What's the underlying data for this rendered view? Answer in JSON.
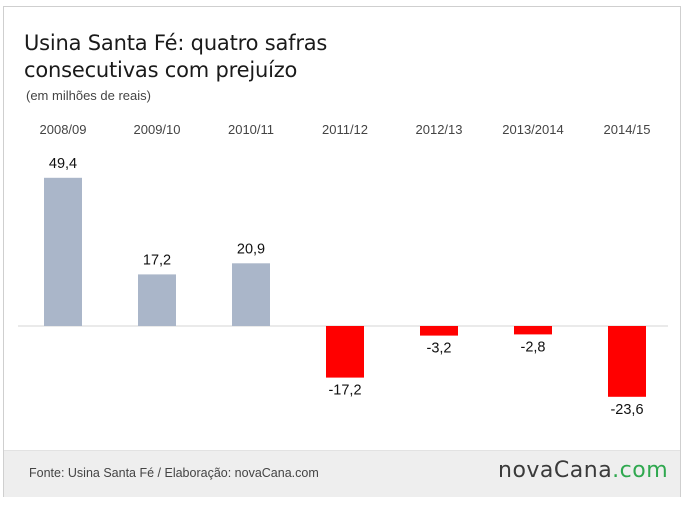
{
  "title_line1": "Usina Santa Fé: quatro safras",
  "title_line2": "consecutivas com prejuízo",
  "subtitle": "(em milhões de reais)",
  "footer": {
    "source": "Fonte: Usina Santa Fé / Elaboração: novaCana.com",
    "brand_main": "novaCana",
    "brand_suffix": ".com"
  },
  "colors": {
    "positive": "#aab6c9",
    "negative": "#ff0000",
    "brand_accent": "#2fa84f"
  },
  "chart_data": {
    "type": "bar",
    "title": "Usina Santa Fé: quatro safras consecutivas com prejuízo",
    "subtitle": "(em milhões de reais)",
    "categories": [
      "2008/09",
      "2009/10",
      "2010/11",
      "2011/12",
      "2012/13",
      "2013/2014",
      "2014/15"
    ],
    "values": [
      49.4,
      17.2,
      20.9,
      -17.2,
      -3.2,
      -2.8,
      -23.6
    ],
    "labels": [
      "49,4",
      "17,2",
      "20,9",
      "-17,2",
      "-3,2",
      "-2,8",
      "-23,6"
    ],
    "category_axis_position": "top",
    "zero_line": true,
    "grid": false,
    "legend": "none"
  }
}
